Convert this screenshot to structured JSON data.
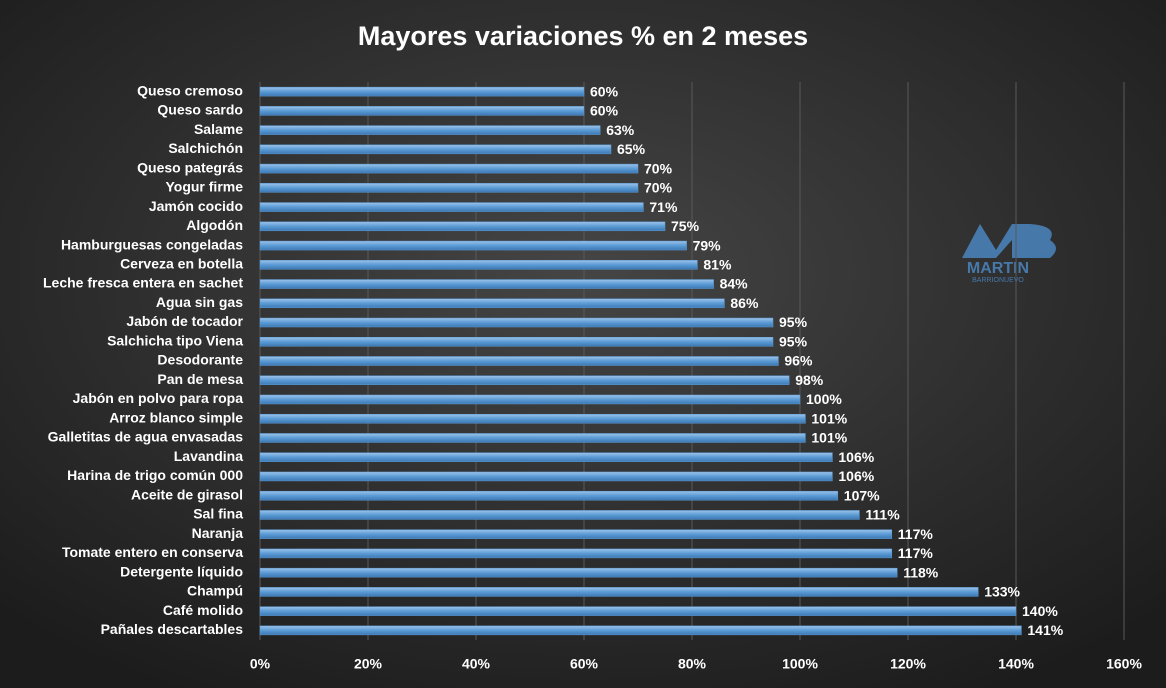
{
  "chart_data": {
    "type": "barh",
    "title": "Mayores variaciones % en 2 meses",
    "categories": [
      "Queso cremoso",
      "Queso sardo",
      "Salame",
      "Salchichón",
      "Queso pategrás",
      "Yogur firme",
      "Jamón cocido",
      "Algodón",
      "Hamburguesas congeladas",
      "Cerveza en botella",
      "Leche fresca entera en sachet",
      "Agua sin gas",
      "Jabón de tocador",
      "Salchicha tipo Viena",
      "Desodorante",
      "Pan de mesa",
      "Jabón en polvo para ropa",
      "Arroz blanco simple",
      "Galletitas de agua envasadas",
      "Lavandina",
      "Harina de trigo común 000",
      "Aceite de girasol",
      "Sal fina",
      "Naranja",
      "Tomate entero en conserva",
      "Detergente líquido",
      "Champú",
      "Café molido",
      "Pañales descartables"
    ],
    "values": [
      60,
      60,
      63,
      65,
      70,
      70,
      71,
      75,
      79,
      81,
      84,
      86,
      95,
      95,
      96,
      98,
      100,
      101,
      101,
      106,
      106,
      107,
      111,
      117,
      117,
      118,
      133,
      140,
      141
    ],
    "value_labels": [
      "60%",
      "60%",
      "63%",
      "65%",
      "70%",
      "70%",
      "71%",
      "75%",
      "79%",
      "81%",
      "84%",
      "86%",
      "95%",
      "95%",
      "96%",
      "98%",
      "100%",
      "101%",
      "101%",
      "106%",
      "106%",
      "107%",
      "111%",
      "117%",
      "117%",
      "118%",
      "133%",
      "140%",
      "141%"
    ],
    "color": "#5b9bd5",
    "xlim": [
      0,
      160
    ],
    "xticks": [
      {
        "value": 0,
        "label": "0%"
      },
      {
        "value": 20,
        "label": "20%"
      },
      {
        "value": 40,
        "label": "40%"
      },
      {
        "value": 60,
        "label": "60%"
      },
      {
        "value": 80,
        "label": "80%"
      },
      {
        "value": 100,
        "label": "100%"
      },
      {
        "value": 120,
        "label": "120%"
      },
      {
        "value": 140,
        "label": "140%"
      },
      {
        "value": 160,
        "label": "160%"
      }
    ],
    "grid": true,
    "watermark": "MARTIN",
    "watermark_sub": "BARRIONUEVO"
  }
}
